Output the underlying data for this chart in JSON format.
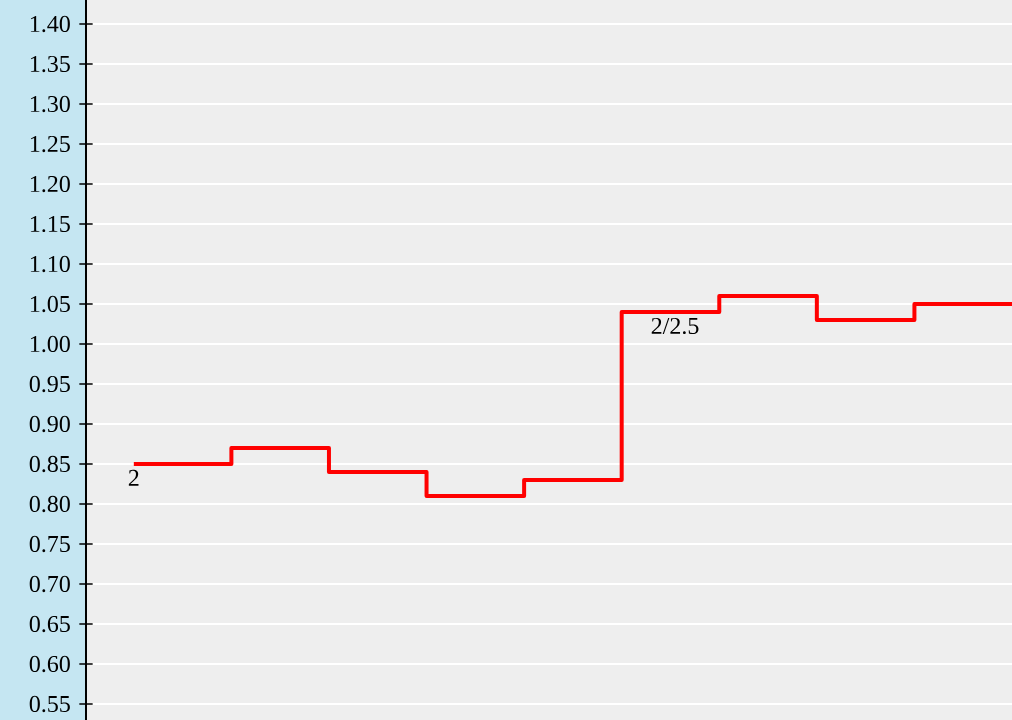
{
  "chart_data": {
    "type": "step",
    "categories": [
      null,
      null,
      null,
      null,
      null,
      null,
      null,
      null,
      null,
      null
    ],
    "ylim": [
      0.53,
      1.43
    ],
    "yticks": [
      0.55,
      {
        "value": 0.6,
        "label": "0.60"
      },
      0.65,
      {
        "value": 0.7,
        "label": "0.70"
      },
      0.75,
      {
        "value": 0.8,
        "label": "0.80"
      },
      0.85,
      {
        "value": 0.9,
        "label": "0.90"
      },
      0.95,
      {
        "value": 1.0,
        "label": "1.00"
      },
      1.05,
      {
        "value": 1.1,
        "label": "1.10"
      },
      1.15,
      {
        "value": 1.2,
        "label": "1.20"
      },
      1.25,
      {
        "value": 1.3,
        "label": "1.30"
      },
      1.35,
      {
        "value": 1.4,
        "label": "1.40"
      }
    ],
    "tick_labels": "y",
    "grid": "y",
    "series": [
      {
        "color": "#ff0000",
        "values": [
          0.85,
          0.87,
          0.84,
          0.81,
          0.83,
          1.04,
          1.06,
          1.03,
          1.05,
          1.05
        ]
      }
    ],
    "annotations": [
      "2",
      "2/2.5"
    ]
  }
}
